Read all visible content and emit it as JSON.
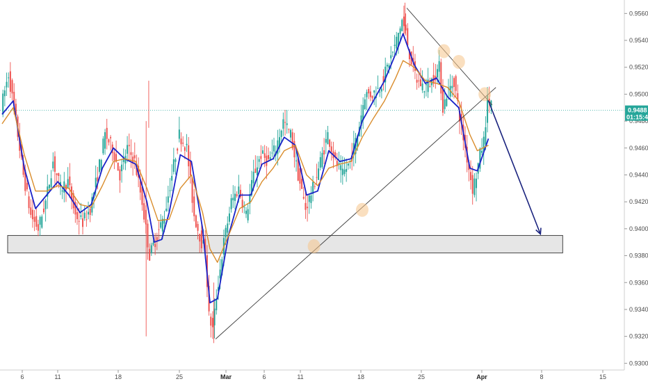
{
  "chart_data": {
    "type": "candlestick",
    "title": "",
    "xlabel": "",
    "ylabel": "",
    "ylim": [
      0.9295,
      0.957
    ],
    "y_ticks": [
      "0.9560",
      "0.9540",
      "0.9520",
      "0.9500",
      "0.9480",
      "0.9460",
      "0.9440",
      "0.9420",
      "0.9400",
      "0.9380",
      "0.9360",
      "0.9340",
      "0.9320",
      "0.9300"
    ],
    "x_ticks": [
      {
        "label": "6",
        "bold": false
      },
      {
        "label": "11",
        "bold": false
      },
      {
        "label": "18",
        "bold": false
      },
      {
        "label": "25",
        "bold": false
      },
      {
        "label": "Mar",
        "bold": true
      },
      {
        "label": "6",
        "bold": false
      },
      {
        "label": "11",
        "bold": false
      },
      {
        "label": "18",
        "bold": false
      },
      {
        "label": "25",
        "bold": false
      },
      {
        "label": "Apr",
        "bold": true
      },
      {
        "label": "8",
        "bold": false
      },
      {
        "label": "15",
        "bold": false
      }
    ],
    "current_price": {
      "price": "0.9488",
      "countdown": "01:15:42",
      "value": 0.9488
    },
    "price_path": [
      [
        0,
        0.949
      ],
      [
        2,
        0.9515
      ],
      [
        4,
        0.948
      ],
      [
        6,
        0.944
      ],
      [
        8,
        0.941
      ],
      [
        10,
        0.94
      ],
      [
        12,
        0.942
      ],
      [
        14,
        0.945
      ],
      [
        16,
        0.943
      ],
      [
        18,
        0.9435
      ],
      [
        20,
        0.941
      ],
      [
        22,
        0.9405
      ],
      [
        24,
        0.9415
      ],
      [
        26,
        0.944
      ],
      [
        28,
        0.947
      ],
      [
        30,
        0.946
      ],
      [
        32,
        0.944
      ],
      [
        34,
        0.946
      ],
      [
        36,
        0.945
      ],
      [
        38,
        0.942
      ],
      [
        40,
        0.938
      ],
      [
        42,
        0.9395
      ],
      [
        44,
        0.941
      ],
      [
        46,
        0.944
      ],
      [
        48,
        0.947
      ],
      [
        50,
        0.946
      ],
      [
        52,
        0.941
      ],
      [
        54,
        0.939
      ],
      [
        55,
        0.9385
      ],
      [
        56,
        0.9335
      ],
      [
        57,
        0.9325
      ],
      [
        58,
        0.935
      ],
      [
        60,
        0.939
      ],
      [
        62,
        0.942
      ],
      [
        64,
        0.943
      ],
      [
        66,
        0.941
      ],
      [
        68,
        0.944
      ],
      [
        70,
        0.9455
      ],
      [
        72,
        0.945
      ],
      [
        74,
        0.946
      ],
      [
        76,
        0.948
      ],
      [
        78,
        0.947
      ],
      [
        80,
        0.944
      ],
      [
        82,
        0.9415
      ],
      [
        84,
        0.943
      ],
      [
        86,
        0.945
      ],
      [
        88,
        0.947
      ],
      [
        90,
        0.945
      ],
      [
        92,
        0.944
      ],
      [
        94,
        0.945
      ],
      [
        96,
        0.947
      ],
      [
        98,
        0.95
      ],
      [
        100,
        0.95
      ],
      [
        102,
        0.9505
      ],
      [
        104,
        0.952
      ],
      [
        106,
        0.9535
      ],
      [
        108,
        0.9555
      ],
      [
        109,
        0.9545
      ],
      [
        110,
        0.953
      ],
      [
        112,
        0.951
      ],
      [
        114,
        0.9505
      ],
      [
        116,
        0.951
      ],
      [
        118,
        0.952
      ],
      [
        119,
        0.949
      ],
      [
        120,
        0.95
      ],
      [
        122,
        0.951
      ],
      [
        124,
        0.9475
      ],
      [
        126,
        0.9445
      ],
      [
        127,
        0.943
      ],
      [
        128,
        0.944
      ],
      [
        129,
        0.9455
      ],
      [
        130,
        0.9465
      ],
      [
        131,
        0.9495
      ]
    ],
    "indicators": [
      {
        "color": "#1a22c8",
        "points": [
          [
            0,
            0.9485
          ],
          [
            3,
            0.9495
          ],
          [
            6,
            0.9445
          ],
          [
            9,
            0.9415
          ],
          [
            12,
            0.9425
          ],
          [
            15,
            0.9435
          ],
          [
            18,
            0.9425
          ],
          [
            21,
            0.9412
          ],
          [
            24,
            0.9418
          ],
          [
            27,
            0.9445
          ],
          [
            30,
            0.946
          ],
          [
            33,
            0.9452
          ],
          [
            36,
            0.9448
          ],
          [
            39,
            0.942
          ],
          [
            41,
            0.939
          ],
          [
            43,
            0.9392
          ],
          [
            45,
            0.9412
          ],
          [
            48,
            0.9455
          ],
          [
            51,
            0.945
          ],
          [
            54,
            0.94
          ],
          [
            56,
            0.9345
          ],
          [
            58,
            0.9348
          ],
          [
            61,
            0.9395
          ],
          [
            64,
            0.9425
          ],
          [
            67,
            0.9425
          ],
          [
            70,
            0.9448
          ],
          [
            73,
            0.9452
          ],
          [
            76,
            0.9468
          ],
          [
            79,
            0.9462
          ],
          [
            82,
            0.9425
          ],
          [
            85,
            0.9428
          ],
          [
            88,
            0.9458
          ],
          [
            91,
            0.945
          ],
          [
            94,
            0.9452
          ],
          [
            97,
            0.948
          ],
          [
            100,
            0.9495
          ],
          [
            103,
            0.951
          ],
          [
            106,
            0.953
          ],
          [
            108,
            0.9545
          ],
          [
            111,
            0.9522
          ],
          [
            114,
            0.9508
          ],
          [
            117,
            0.9512
          ],
          [
            120,
            0.9498
          ],
          [
            123,
            0.949
          ],
          [
            126,
            0.9445
          ],
          [
            128,
            0.9443
          ],
          [
            131,
            0.9467
          ]
        ]
      },
      {
        "color": "#d98c2b",
        "points": [
          [
            0,
            0.9478
          ],
          [
            3,
            0.949
          ],
          [
            6,
            0.9455
          ],
          [
            9,
            0.9428
          ],
          [
            12,
            0.9428
          ],
          [
            15,
            0.9432
          ],
          [
            18,
            0.943
          ],
          [
            21,
            0.9418
          ],
          [
            24,
            0.9416
          ],
          [
            27,
            0.9432
          ],
          [
            30,
            0.945
          ],
          [
            33,
            0.9452
          ],
          [
            36,
            0.945
          ],
          [
            39,
            0.943
          ],
          [
            42,
            0.9406
          ],
          [
            45,
            0.9407
          ],
          [
            48,
            0.943
          ],
          [
            51,
            0.944
          ],
          [
            54,
            0.9412
          ],
          [
            56,
            0.9385
          ],
          [
            58,
            0.9375
          ],
          [
            61,
            0.9395
          ],
          [
            64,
            0.9415
          ],
          [
            67,
            0.942
          ],
          [
            70,
            0.9435
          ],
          [
            73,
            0.9445
          ],
          [
            76,
            0.9458
          ],
          [
            79,
            0.9462
          ],
          [
            82,
            0.944
          ],
          [
            85,
            0.9432
          ],
          [
            88,
            0.9445
          ],
          [
            91,
            0.9448
          ],
          [
            94,
            0.945
          ],
          [
            97,
            0.9468
          ],
          [
            100,
            0.9482
          ],
          [
            103,
            0.9495
          ],
          [
            106,
            0.9512
          ],
          [
            108,
            0.9525
          ],
          [
            111,
            0.952
          ],
          [
            114,
            0.951
          ],
          [
            117,
            0.9508
          ],
          [
            120,
            0.9505
          ],
          [
            123,
            0.9495
          ],
          [
            126,
            0.947
          ],
          [
            128,
            0.9458
          ],
          [
            131,
            0.9462
          ]
        ]
      }
    ],
    "annotations": {
      "support_zone": {
        "y_top": 0.9395,
        "y_bottom": 0.9382,
        "x_start": 1.5,
        "x_end": 151
      },
      "trendlines": [
        {
          "from": [
            57.5,
            0.9318
          ],
          "to": [
            133,
            0.9505
          ]
        },
        {
          "from": [
            109,
            0.9564
          ],
          "to": [
            132,
            0.9492
          ]
        }
      ],
      "touch_points": [
        {
          "x": 84,
          "y": 0.9387
        },
        {
          "x": 97,
          "y": 0.9414
        },
        {
          "x": 119,
          "y": 0.9532
        },
        {
          "x": 123,
          "y": 0.9524
        },
        {
          "x": 130,
          "y": 0.95
        }
      ],
      "projection_arrow": {
        "from": [
          131,
          0.9495
        ],
        "to": [
          145,
          0.9396
        ]
      }
    }
  }
}
